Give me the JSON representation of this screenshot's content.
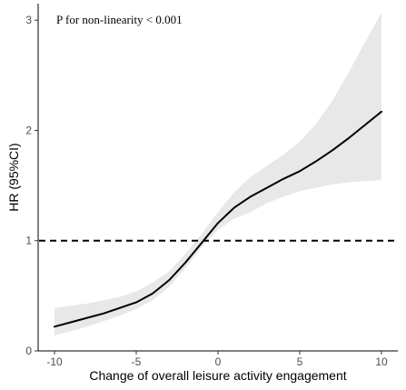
{
  "chart_data": {
    "type": "line",
    "xlabel": "Change of overall leisure activity engagement",
    "ylabel": "HR (95%CI)",
    "xlim": [
      -11,
      11
    ],
    "ylim": [
      0,
      3.15
    ],
    "x_ticks": [
      -10,
      -5,
      0,
      5,
      10
    ],
    "x_tick_labels": [
      "-10",
      "-5",
      "0",
      "5",
      "10"
    ],
    "y_ticks": [
      0,
      1,
      2,
      3
    ],
    "y_tick_labels": [
      "0",
      "1",
      "2",
      "3"
    ],
    "annotation": "P for non-linearity  < 0.001",
    "reference_line": {
      "y": 1,
      "style": "dashed"
    },
    "grid": false,
    "colors": {
      "line": "#000000",
      "ribbon": "#e8e8e8",
      "axis": "#000000",
      "tick_text": "#4d4d4d"
    },
    "series": [
      {
        "x": [
          -10,
          -9,
          -8,
          -7,
          -6,
          -5,
          -4,
          -3,
          -2,
          -1,
          0,
          1,
          2,
          3,
          4,
          5,
          6,
          7,
          8,
          9,
          10
        ],
        "y": [
          0.22,
          0.26,
          0.3,
          0.34,
          0.39,
          0.44,
          0.52,
          0.64,
          0.8,
          0.98,
          1.16,
          1.3,
          1.4,
          1.48,
          1.56,
          1.63,
          1.72,
          1.82,
          1.93,
          2.05,
          2.17
        ],
        "lower": [
          0.14,
          0.18,
          0.22,
          0.27,
          0.32,
          0.38,
          0.46,
          0.58,
          0.75,
          0.94,
          1.1,
          1.2,
          1.26,
          1.34,
          1.4,
          1.45,
          1.48,
          1.51,
          1.53,
          1.54,
          1.55
        ],
        "upper": [
          0.39,
          0.41,
          0.43,
          0.46,
          0.49,
          0.54,
          0.62,
          0.72,
          0.88,
          1.06,
          1.26,
          1.44,
          1.58,
          1.68,
          1.78,
          1.9,
          2.06,
          2.27,
          2.53,
          2.8,
          3.07
        ]
      }
    ]
  }
}
